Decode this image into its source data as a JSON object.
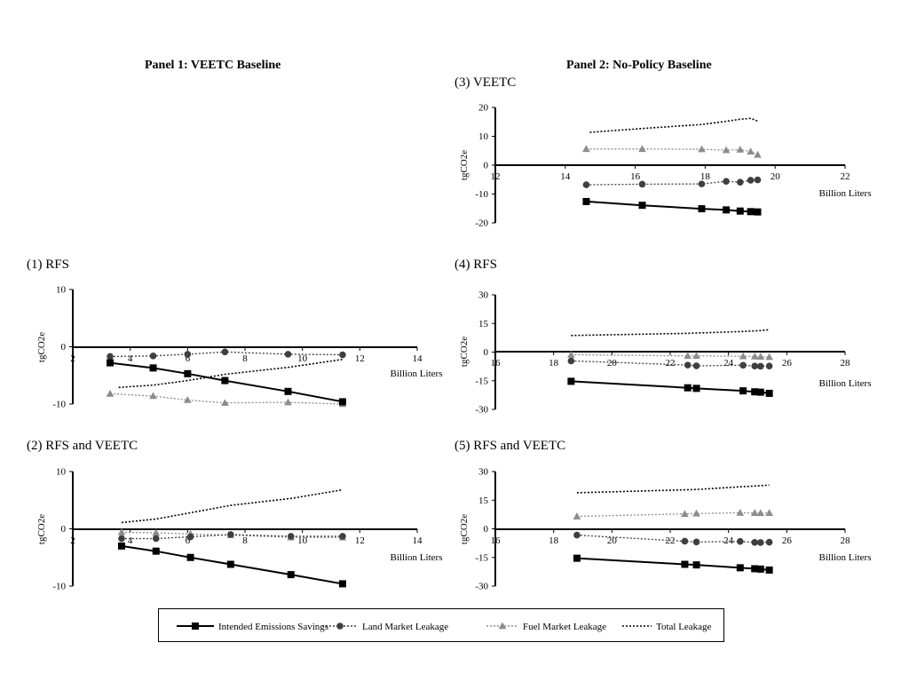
{
  "panel_titles": {
    "left": "Panel 1: VEETC Baseline",
    "right": "Panel 2: No-Policy Baseline"
  },
  "colors": {
    "intended": "#000000",
    "land": "#3f3f3f",
    "fuel": "#8c8c8c",
    "total": "#000000"
  },
  "legend": [
    {
      "label": "Intended Emissions Savings",
      "marker": "square",
      "style": "solid",
      "color": "#000000"
    },
    {
      "label": "Land Market Leakage",
      "marker": "circle",
      "style": "dotted",
      "color": "#3f3f3f"
    },
    {
      "label": "Fuel Market Leakage",
      "marker": "triangle",
      "style": "dotted",
      "color": "#8c8c8c"
    },
    {
      "label": "Total Leakage",
      "marker": "none",
      "style": "dotted",
      "color": "#000000"
    }
  ],
  "chart_data": [
    {
      "id": "rfs-veetc-baseline",
      "type": "line",
      "title": "(1) RFS",
      "xlabel": "Billion Liters",
      "ylabel": "tgCO2e",
      "xlim": [
        2,
        14
      ],
      "ylim": [
        -10,
        10
      ],
      "xticks": [
        2,
        4,
        6,
        8,
        10,
        12,
        14
      ],
      "yticks": [
        -10,
        0,
        10
      ],
      "series": [
        {
          "name": "Intended Emissions Savings",
          "x": [
            3.3,
            4.8,
            6.0,
            7.3,
            9.5,
            11.4
          ],
          "y": [
            -2.8,
            -3.7,
            -4.7,
            -5.9,
            -7.8,
            -9.6
          ]
        },
        {
          "name": "Land Market Leakage",
          "x": [
            3.3,
            4.8,
            6.0,
            7.3,
            9.5,
            11.4
          ],
          "y": [
            -1.7,
            -1.6,
            -1.3,
            -0.9,
            -1.3,
            -1.4
          ]
        },
        {
          "name": "Fuel Market Leakage",
          "x": [
            3.3,
            4.8,
            6.0,
            7.3,
            9.5,
            11.4
          ],
          "y": [
            -8.2,
            -8.6,
            -9.3,
            -9.8,
            -9.7,
            -10.0
          ]
        },
        {
          "name": "Total Leakage",
          "x": [
            3.6,
            4.8,
            6.0,
            7.3,
            9.5,
            11.4
          ],
          "y": [
            -7.1,
            -6.7,
            -5.9,
            -4.8,
            -3.6,
            -2.2
          ]
        }
      ]
    },
    {
      "id": "rfs-veetc-combined",
      "type": "line",
      "title": "(2) RFS and VEETC",
      "xlabel": "Billion Liters",
      "ylabel": "tgCO2e",
      "xlim": [
        2,
        14
      ],
      "ylim": [
        -10,
        10
      ],
      "xticks": [
        2,
        4,
        6,
        8,
        10,
        12,
        14
      ],
      "yticks": [
        -10,
        0,
        10
      ],
      "series": [
        {
          "name": "Intended Emissions Savings",
          "x": [
            3.7,
            4.9,
            6.1,
            7.5,
            9.6,
            11.4
          ],
          "y": [
            -3.0,
            -3.9,
            -5.0,
            -6.2,
            -8.0,
            -9.6
          ]
        },
        {
          "name": "Land Market Leakage",
          "x": [
            3.7,
            4.9,
            6.1,
            7.5,
            9.6,
            11.4
          ],
          "y": [
            -1.7,
            -1.7,
            -1.4,
            -1.0,
            -1.3,
            -1.3
          ]
        },
        {
          "name": "Fuel Market Leakage",
          "x": [
            3.7,
            4.9,
            6.1,
            7.5,
            9.6,
            11.4
          ],
          "y": [
            -0.6,
            -0.7,
            -0.9,
            -1.1,
            -1.5,
            -1.5
          ]
        },
        {
          "name": "Total Leakage",
          "x": [
            3.7,
            4.9,
            6.1,
            7.5,
            9.6,
            11.4
          ],
          "y": [
            1.1,
            1.7,
            2.8,
            4.1,
            5.3,
            6.8
          ]
        }
      ]
    },
    {
      "id": "veetc-no-policy",
      "type": "line",
      "title": "(3) VEETC",
      "xlabel": "Billion Liters",
      "ylabel": "tgCO2e",
      "xlim": [
        12,
        22
      ],
      "ylim": [
        -20,
        20
      ],
      "xticks": [
        12,
        14,
        16,
        18,
        20,
        22
      ],
      "yticks": [
        -20,
        -10,
        0,
        10,
        20
      ],
      "series": [
        {
          "name": "Intended Emissions Savings",
          "x": [
            14.6,
            16.2,
            17.9,
            18.6,
            19.0,
            19.3,
            19.5
          ],
          "y": [
            -12.6,
            -13.9,
            -15.1,
            -15.5,
            -15.9,
            -16.1,
            -16.2
          ]
        },
        {
          "name": "Land Market Leakage",
          "x": [
            14.6,
            16.2,
            17.9,
            18.6,
            19.0,
            19.3,
            19.5
          ],
          "y": [
            -6.8,
            -6.6,
            -6.5,
            -5.6,
            -5.9,
            -5.2,
            -5.1
          ]
        },
        {
          "name": "Fuel Market Leakage",
          "x": [
            14.6,
            16.2,
            17.9,
            18.6,
            19.0,
            19.3,
            19.5
          ],
          "y": [
            5.6,
            5.6,
            5.5,
            5.2,
            5.4,
            4.7,
            3.6
          ]
        },
        {
          "name": "Total Leakage",
          "x": [
            14.7,
            16.2,
            17.9,
            18.6,
            19.0,
            19.3,
            19.5
          ],
          "y": [
            11.4,
            12.7,
            14.1,
            15.2,
            15.9,
            16.2,
            15.3
          ]
        }
      ]
    },
    {
      "id": "rfs-no-policy",
      "type": "line",
      "title": "(4) RFS",
      "xlabel": "Billion Liters",
      "ylabel": "tgCO2e",
      "xlim": [
        16,
        28
      ],
      "ylim": [
        -30,
        30
      ],
      "xticks": [
        16,
        18,
        20,
        22,
        24,
        26,
        28
      ],
      "yticks": [
        -30,
        -15,
        0,
        15,
        30
      ],
      "series": [
        {
          "name": "Intended Emissions Savings",
          "x": [
            18.6,
            22.6,
            22.9,
            24.5,
            24.9,
            25.1,
            25.4
          ],
          "y": [
            -15.3,
            -18.7,
            -19.0,
            -20.3,
            -20.8,
            -21.0,
            -21.6
          ]
        },
        {
          "name": "Land Market Leakage",
          "x": [
            18.6,
            22.6,
            22.9,
            24.5,
            24.9,
            25.1,
            25.4
          ],
          "y": [
            -4.6,
            -6.8,
            -7.2,
            -6.9,
            -7.3,
            -7.4,
            -7.3
          ]
        },
        {
          "name": "Fuel Market Leakage",
          "x": [
            18.6,
            22.6,
            22.9,
            24.5,
            24.9,
            25.1,
            25.4
          ],
          "y": [
            -1.4,
            -2.0,
            -2.0,
            -2.2,
            -2.3,
            -2.4,
            -2.6
          ]
        },
        {
          "name": "Total Leakage",
          "x": [
            18.6,
            22.6,
            22.9,
            24.5,
            24.9,
            25.1,
            25.4
          ],
          "y": [
            8.7,
            9.8,
            10.0,
            10.8,
            11.1,
            11.3,
            11.7
          ]
        }
      ]
    },
    {
      "id": "rfs-veetc-no-policy",
      "type": "line",
      "title": "(5) RFS and VEETC",
      "xlabel": "Billion Liters",
      "ylabel": "tgCO2e",
      "xlim": [
        16,
        28
      ],
      "ylim": [
        -30,
        30
      ],
      "xticks": [
        16,
        18,
        20,
        22,
        24,
        26,
        28
      ],
      "yticks": [
        -30,
        -15,
        0,
        15,
        30
      ],
      "series": [
        {
          "name": "Intended Emissions Savings",
          "x": [
            18.8,
            22.5,
            22.9,
            24.4,
            24.9,
            25.1,
            25.4
          ],
          "y": [
            -15.4,
            -18.6,
            -18.9,
            -20.4,
            -20.9,
            -21.1,
            -21.6
          ]
        },
        {
          "name": "Land Market Leakage",
          "x": [
            18.8,
            22.5,
            22.9,
            24.4,
            24.9,
            25.1,
            25.4
          ],
          "y": [
            -3.3,
            -6.5,
            -6.9,
            -6.6,
            -7.1,
            -7.2,
            -7.0
          ]
        },
        {
          "name": "Fuel Market Leakage",
          "x": [
            18.8,
            22.5,
            22.9,
            24.4,
            24.9,
            25.1,
            25.4
          ],
          "y": [
            6.5,
            7.8,
            8.0,
            8.4,
            8.3,
            8.2,
            8.3
          ]
        },
        {
          "name": "Total Leakage",
          "x": [
            18.8,
            22.5,
            22.9,
            24.4,
            24.9,
            25.1,
            25.4
          ],
          "y": [
            18.9,
            20.4,
            20.6,
            22.0,
            22.4,
            22.6,
            22.9
          ]
        }
      ]
    }
  ]
}
